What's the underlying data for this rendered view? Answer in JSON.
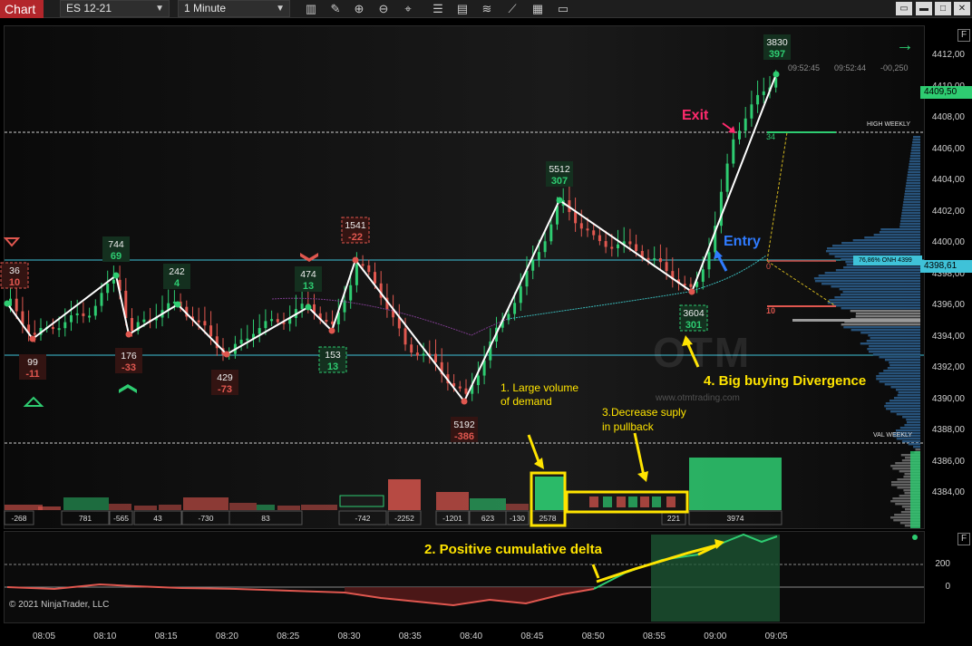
{
  "toolbar": {
    "tab_label": "Chart",
    "instrument": "ES 12-21",
    "interval": "1 Minute"
  },
  "price_axis": {
    "ticks": [
      "4412,00",
      "4410,00",
      "4408,00",
      "4406,00",
      "4404,00",
      "4402,00",
      "4400,00",
      "4398,00",
      "4396,00",
      "4394,00",
      "4392,00",
      "4390,00",
      "4388,00",
      "4386,00",
      "4384,00"
    ],
    "current_price": "4409,50",
    "onh_label": "76,86% ONH 4399",
    "onh_price": "4398,61"
  },
  "delta_axis": {
    "ticks": [
      "200",
      "0"
    ]
  },
  "time_axis": {
    "ticks": [
      "08:05",
      "08:10",
      "08:15",
      "08:20",
      "08:25",
      "08:30",
      "08:35",
      "08:40",
      "08:45",
      "08:50",
      "08:55",
      "09:00",
      "09:05"
    ]
  },
  "levels": {
    "high_weekly": "HIGH WEEKLY",
    "val_weekly": "VAL WEEKLY"
  },
  "status": {
    "time1": "09:52:45",
    "time2": "09:52:44",
    "change": "-00,250"
  },
  "swing_labels": [
    {
      "vol": "36",
      "delta": "10",
      "pos": false,
      "boxed": "dashed"
    },
    {
      "vol": "99",
      "delta": "-11",
      "pos": false,
      "boxed": "solid"
    },
    {
      "vol": "744",
      "delta": "69",
      "pos": true,
      "boxed": "solid"
    },
    {
      "vol": "176",
      "delta": "-33",
      "pos": false,
      "boxed": "solid"
    },
    {
      "vol": "242",
      "delta": "4",
      "pos": true,
      "boxed": "solid"
    },
    {
      "vol": "429",
      "delta": "-73",
      "pos": false,
      "boxed": "solid"
    },
    {
      "vol": "474",
      "delta": "13",
      "pos": true,
      "boxed": "solid"
    },
    {
      "vol": "153",
      "delta": "13",
      "pos": true,
      "boxed": "dashed"
    },
    {
      "vol": "1541",
      "delta": "-22",
      "pos": false,
      "boxed": "dashed"
    },
    {
      "vol": "5192",
      "delta": "-386",
      "pos": false,
      "boxed": "solid"
    },
    {
      "vol": "5512",
      "delta": "307",
      "pos": true,
      "boxed": "solid"
    },
    {
      "vol": "3604",
      "delta": "301",
      "pos": true,
      "boxed": "dashed"
    },
    {
      "vol": "3830",
      "delta": "397",
      "pos": true,
      "boxed": "solid"
    }
  ],
  "volume_cells": [
    "-268",
    "781",
    "-565",
    "43",
    "-730",
    "83",
    "-742",
    "-2252",
    "-1201",
    "623",
    "-130",
    "2578",
    "221",
    "3974"
  ],
  "profile_labels": {
    "hv_top": "34",
    "hv_bottom": "10",
    "mid": "0"
  },
  "annotations": {
    "exit": "Exit",
    "entry": "Entry",
    "note1_line1": "1. Large volume",
    "note1_line2": "of demand",
    "note2": "2. Positive cumulative delta",
    "note3_line1": "3.Decrease suply",
    "note3_line2": "in pullback",
    "note4": "4. Big buying Divergence"
  },
  "watermark": {
    "brand": "OTM",
    "url": "www.otmtrading.com"
  },
  "copyright": "© 2021 NinjaTrader, LLC",
  "panel_buttons": {
    "top": "F",
    "bottom": "F"
  },
  "colors": {
    "up": "#2ecc71",
    "down": "#e0574f",
    "accent": "#ffe400",
    "tab": "#b3262b",
    "cyan_line": "#3fc2d8"
  }
}
